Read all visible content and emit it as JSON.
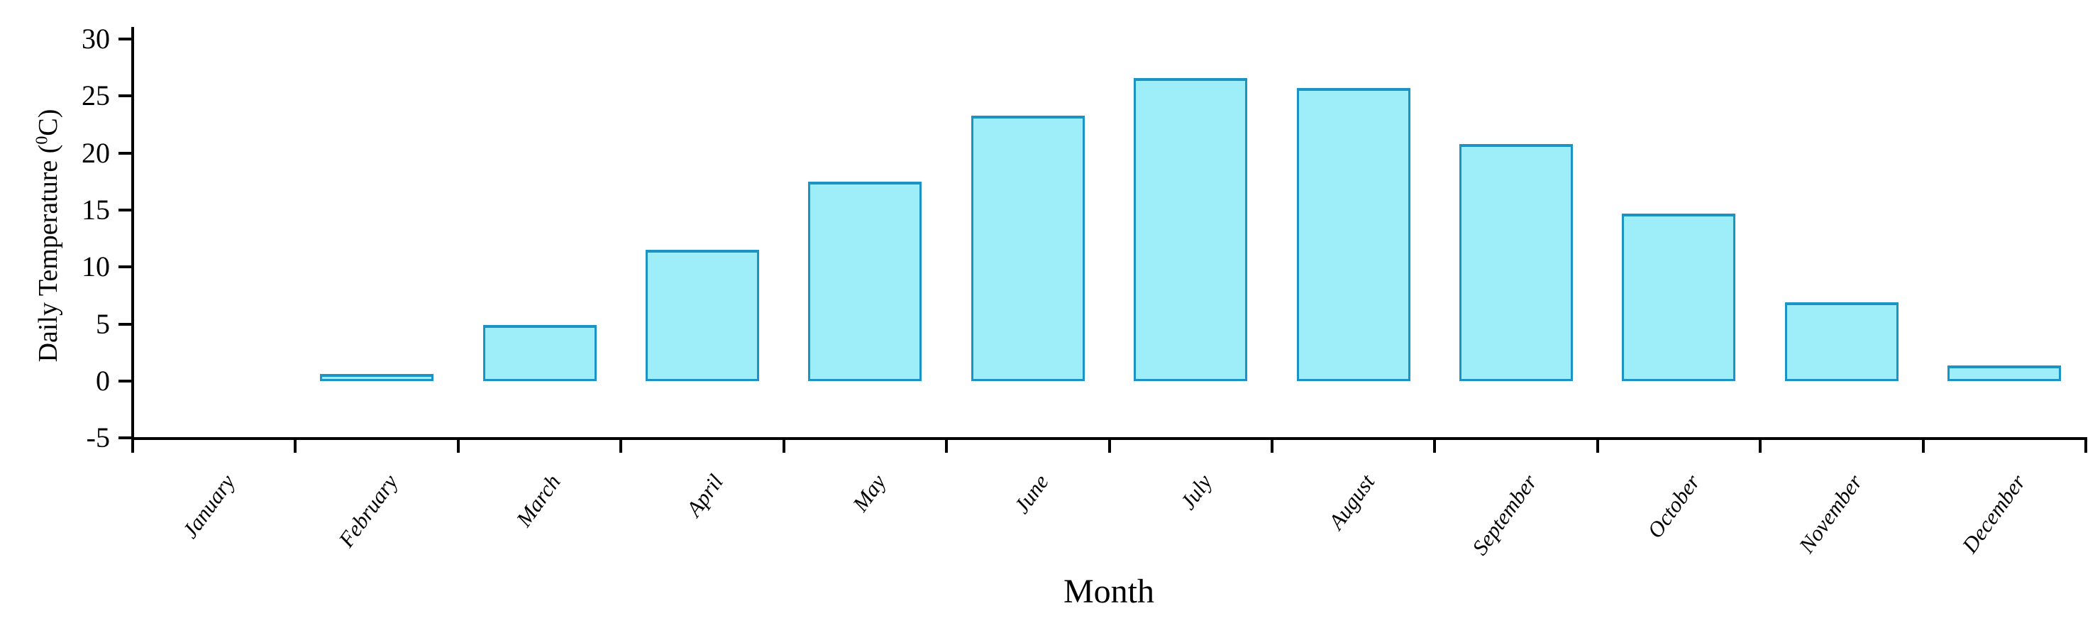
{
  "figure": {
    "ylabel_prefix": "Daily Temperature (",
    "ylabel_sup": "0",
    "ylabel_suffix": "C)",
    "xlabel": "Month"
  },
  "chart_data": {
    "type": "bar",
    "title": "",
    "xlabel": "Month",
    "ylabel": "Daily Temperature (0C)",
    "categories": [
      "January",
      "February",
      "March",
      "April",
      "May",
      "June",
      "July",
      "August",
      "September",
      "October",
      "November",
      "December"
    ],
    "values": [
      0,
      0.6,
      4.9,
      11.5,
      17.5,
      23.3,
      26.6,
      25.7,
      20.8,
      14.7,
      6.9,
      1.4
    ],
    "ylim": [
      -5,
      30
    ],
    "yticks": [
      30,
      25,
      20,
      15,
      10,
      5,
      0,
      -5
    ],
    "grid": false,
    "legend": false,
    "bar_fill_color": "#9deef9",
    "bar_border_color": "#1b93c4",
    "axis_color": "#000000",
    "text_color": "#000000"
  }
}
